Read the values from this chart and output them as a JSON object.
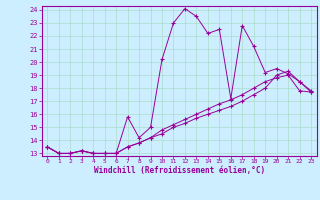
{
  "xlabel": "Windchill (Refroidissement éolien,°C)",
  "xlim": [
    -0.5,
    23.5
  ],
  "ylim": [
    12.8,
    24.3
  ],
  "yticks": [
    13,
    14,
    15,
    16,
    17,
    18,
    19,
    20,
    21,
    22,
    23,
    24
  ],
  "xticks": [
    0,
    1,
    2,
    3,
    4,
    5,
    6,
    7,
    8,
    9,
    10,
    11,
    12,
    13,
    14,
    15,
    16,
    17,
    18,
    19,
    20,
    21,
    22,
    23
  ],
  "bg_color": "#cceeff",
  "line_color": "#990099",
  "grid_color": "#aaddcc",
  "series1_x": [
    0,
    1,
    2,
    3,
    4,
    5,
    6,
    7,
    8,
    9,
    10,
    11,
    12,
    13,
    14,
    15,
    16,
    17,
    18,
    19,
    20,
    21,
    22,
    23
  ],
  "series1_y": [
    13.5,
    13.0,
    13.0,
    13.2,
    13.0,
    13.0,
    13.0,
    15.8,
    14.2,
    15.0,
    20.2,
    23.0,
    24.1,
    23.5,
    22.2,
    22.5,
    17.2,
    22.8,
    21.2,
    19.2,
    19.5,
    19.1,
    18.5,
    17.8
  ],
  "series2_x": [
    0,
    1,
    2,
    3,
    4,
    5,
    6,
    7,
    8,
    9,
    10,
    11,
    12,
    13,
    14,
    15,
    16,
    17,
    18,
    19,
    20,
    21,
    22,
    23
  ],
  "series2_y": [
    13.5,
    13.0,
    13.0,
    13.2,
    13.0,
    13.0,
    13.0,
    13.5,
    13.8,
    14.2,
    14.8,
    15.2,
    15.6,
    16.0,
    16.4,
    16.8,
    17.1,
    17.5,
    18.0,
    18.5,
    18.8,
    19.0,
    17.8,
    17.7
  ],
  "series3_x": [
    0,
    1,
    2,
    3,
    4,
    5,
    6,
    7,
    8,
    9,
    10,
    11,
    12,
    13,
    14,
    15,
    16,
    17,
    18,
    19,
    20,
    21,
    22,
    23
  ],
  "series3_y": [
    13.5,
    13.0,
    13.0,
    13.2,
    13.0,
    13.0,
    13.0,
    13.5,
    13.8,
    14.2,
    14.5,
    15.0,
    15.3,
    15.7,
    16.0,
    16.3,
    16.6,
    17.0,
    17.5,
    18.0,
    19.0,
    19.3,
    18.5,
    17.7
  ]
}
